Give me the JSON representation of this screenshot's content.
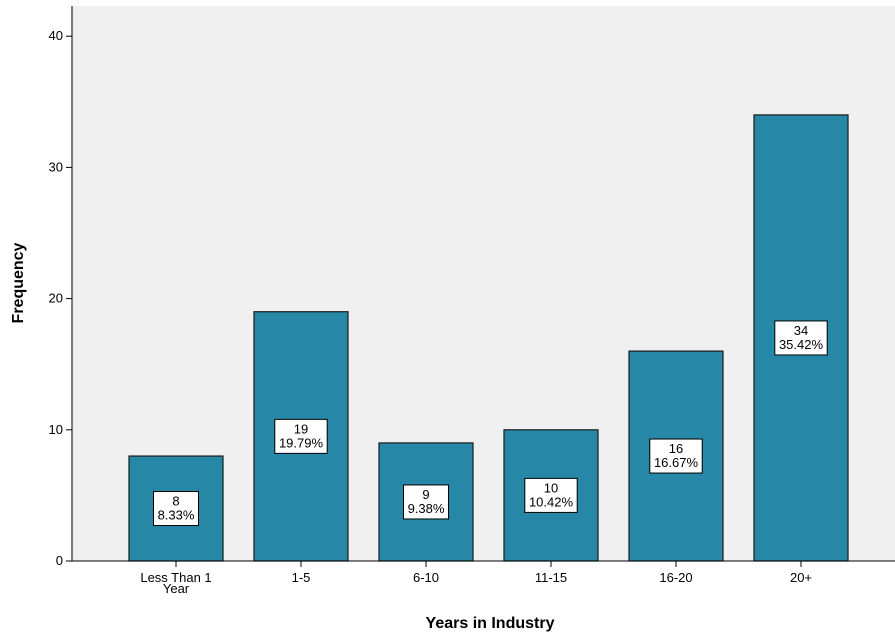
{
  "chart_data": {
    "type": "bar",
    "title": "",
    "xlabel": "Years in Industry",
    "ylabel": "Frequency",
    "categories": [
      [
        "Less Than 1",
        "Year"
      ],
      [
        "1-5"
      ],
      [
        "6-10"
      ],
      [
        "11-15"
      ],
      [
        "16-20"
      ],
      [
        "20+"
      ]
    ],
    "values": [
      8,
      19,
      9,
      10,
      16,
      34
    ],
    "percent_labels": [
      "8.33%",
      "19.79%",
      "9.38%",
      "10.42%",
      "16.67%",
      "35.42%"
    ],
    "ylim": [
      0,
      42
    ],
    "yticks": [
      "0",
      "10",
      "20",
      "30",
      "40"
    ],
    "grid": false,
    "legend": "none",
    "colors": {
      "bar": "#2687a6",
      "bar_edge": "#1a1a1a",
      "plot_bg": "#f0f0f0",
      "label_box": "#ffffff"
    }
  }
}
